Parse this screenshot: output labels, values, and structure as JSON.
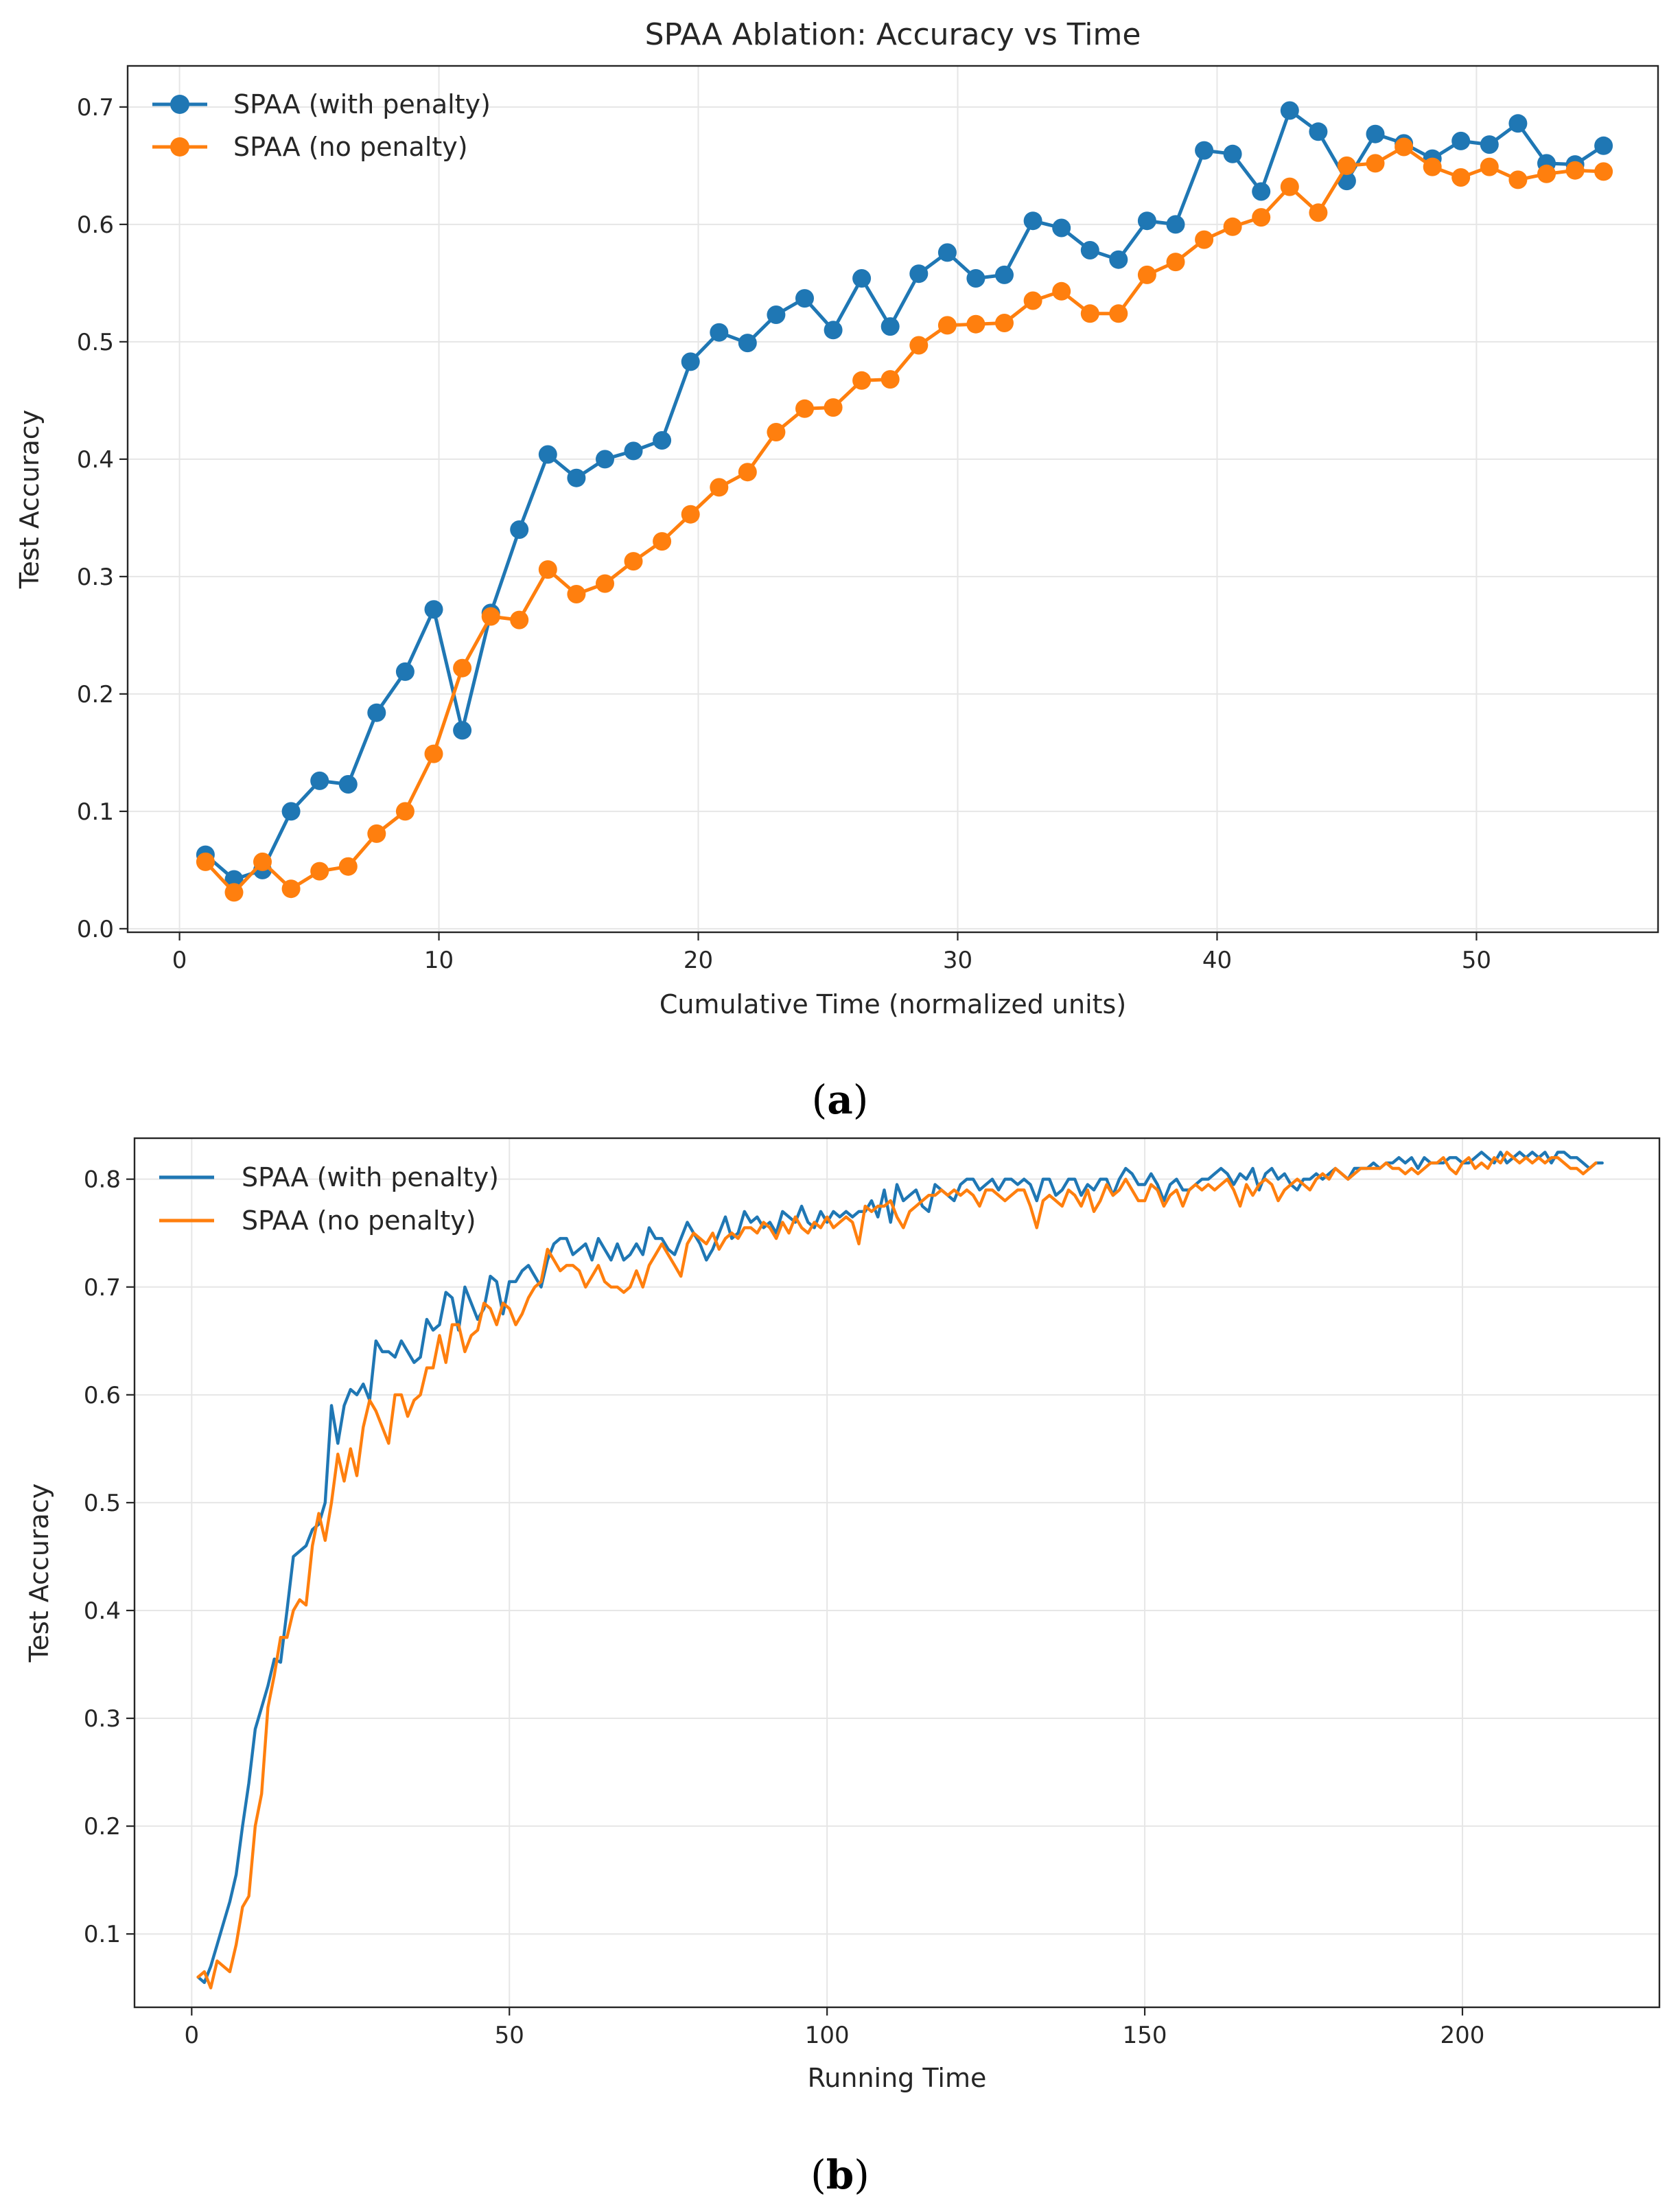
{
  "colors": {
    "with_penalty": "#1f77b4",
    "no_penalty": "#ff7f0e",
    "grid": "#e6e6e6",
    "axis": "#262626"
  },
  "chart_data": [
    {
      "panel": "(a)",
      "panel_letter": "a",
      "type": "line",
      "markers": true,
      "title": "SPAA Ablation: Accuracy vs Time",
      "xlabel": "Cumulative Time (normalized units)",
      "ylabel": "Test Accuracy",
      "xlim": [
        -2.0,
        57.0
      ],
      "ylim": [
        -0.003,
        0.735
      ],
      "xticks": [
        0,
        10,
        20,
        30,
        40,
        50
      ],
      "yticks": [
        0.0,
        0.1,
        0.2,
        0.3,
        0.4,
        0.5,
        0.6,
        0.7
      ],
      "ytick_labels": [
        "0.0",
        "0.1",
        "0.2",
        "0.3",
        "0.4",
        "0.5",
        "0.6",
        "0.7"
      ],
      "grid": true,
      "legend_position": "top-left",
      "x": [
        1.0,
        2.1,
        3.2,
        4.3,
        5.4,
        6.5,
        7.6,
        8.7,
        9.8,
        10.9,
        12.0,
        13.1,
        14.2,
        15.3,
        16.4,
        17.5,
        18.6,
        19.7,
        20.8,
        21.9,
        23.0,
        24.1,
        25.2,
        26.3,
        27.4,
        28.5,
        29.6,
        30.7,
        31.8,
        32.9,
        34.0,
        35.1,
        36.2,
        37.3,
        38.4,
        39.5,
        40.6,
        41.7,
        42.8,
        43.9,
        45.0,
        46.1,
        47.2,
        48.3,
        49.4,
        50.5,
        51.6,
        52.7,
        53.8,
        54.9
      ],
      "series": [
        {
          "name": "SPAA (with penalty)",
          "values": [
            0.063,
            0.042,
            0.05,
            0.1,
            0.126,
            0.123,
            0.184,
            0.219,
            0.272,
            0.169,
            0.269,
            0.34,
            0.404,
            0.384,
            0.4,
            0.407,
            0.416,
            0.483,
            0.508,
            0.499,
            0.523,
            0.537,
            0.51,
            0.554,
            0.513,
            0.558,
            0.576,
            0.554,
            0.557,
            0.603,
            0.597,
            0.578,
            0.57,
            0.603,
            0.6,
            0.663,
            0.66,
            0.628,
            0.697,
            0.679,
            0.637,
            0.677,
            0.669,
            0.656,
            0.671,
            0.668,
            0.686,
            0.652,
            0.651,
            0.667
          ]
        },
        {
          "name": "SPAA (no penalty)",
          "values": [
            0.057,
            0.031,
            0.057,
            0.034,
            0.049,
            0.053,
            0.081,
            0.1,
            0.149,
            0.222,
            0.266,
            0.263,
            0.306,
            0.285,
            0.294,
            0.313,
            0.33,
            0.353,
            0.376,
            0.389,
            0.423,
            0.443,
            0.444,
            0.467,
            0.468,
            0.497,
            0.514,
            0.515,
            0.516,
            0.535,
            0.543,
            0.524,
            0.524,
            0.557,
            0.568,
            0.587,
            0.598,
            0.606,
            0.632,
            0.61,
            0.65,
            0.652,
            0.666,
            0.649,
            0.64,
            0.649,
            0.638,
            0.643,
            0.646,
            0.645
          ]
        }
      ]
    },
    {
      "panel": "(b)",
      "panel_letter": "b",
      "type": "line",
      "markers": false,
      "title": "",
      "xlabel": "Running Time",
      "ylabel": "Test Accuracy",
      "xlim": [
        -9.0,
        231.0
      ],
      "ylim": [
        0.032,
        0.838
      ],
      "xticks": [
        0,
        50,
        100,
        150,
        200
      ],
      "yticks": [
        0.1,
        0.2,
        0.3,
        0.4,
        0.5,
        0.6,
        0.7,
        0.8
      ],
      "ytick_labels": [
        "0.1",
        "0.2",
        "0.3",
        "0.4",
        "0.5",
        "0.6",
        "0.7",
        "0.8"
      ],
      "grid": true,
      "legend_position": "top-left",
      "x_start": 1,
      "x_step": 1,
      "series": [
        {
          "name": "SPAA (with penalty)",
          "values": [
            0.06,
            0.055,
            0.07,
            0.09,
            0.11,
            0.13,
            0.155,
            0.2,
            0.24,
            0.29,
            0.31,
            0.33,
            0.355,
            0.352,
            0.4,
            0.45,
            0.455,
            0.46,
            0.475,
            0.48,
            0.5,
            0.59,
            0.555,
            0.59,
            0.605,
            0.6,
            0.61,
            0.595,
            0.65,
            0.64,
            0.64,
            0.635,
            0.65,
            0.64,
            0.63,
            0.635,
            0.67,
            0.66,
            0.665,
            0.695,
            0.69,
            0.66,
            0.7,
            0.685,
            0.67,
            0.68,
            0.71,
            0.705,
            0.675,
            0.705,
            0.705,
            0.715,
            0.72,
            0.71,
            0.7,
            0.725,
            0.74,
            0.745,
            0.745,
            0.73,
            0.735,
            0.74,
            0.725,
            0.745,
            0.735,
            0.725,
            0.74,
            0.725,
            0.73,
            0.74,
            0.73,
            0.755,
            0.745,
            0.745,
            0.735,
            0.73,
            0.745,
            0.76,
            0.75,
            0.74,
            0.725,
            0.735,
            0.75,
            0.765,
            0.745,
            0.75,
            0.77,
            0.76,
            0.765,
            0.755,
            0.76,
            0.75,
            0.77,
            0.765,
            0.76,
            0.775,
            0.76,
            0.755,
            0.77,
            0.76,
            0.77,
            0.765,
            0.77,
            0.765,
            0.77,
            0.77,
            0.78,
            0.765,
            0.79,
            0.76,
            0.795,
            0.78,
            0.785,
            0.79,
            0.775,
            0.77,
            0.795,
            0.79,
            0.785,
            0.78,
            0.795,
            0.8,
            0.8,
            0.79,
            0.795,
            0.8,
            0.79,
            0.8,
            0.8,
            0.795,
            0.8,
            0.795,
            0.78,
            0.8,
            0.8,
            0.785,
            0.79,
            0.8,
            0.8,
            0.785,
            0.795,
            0.79,
            0.8,
            0.8,
            0.785,
            0.8,
            0.81,
            0.805,
            0.795,
            0.795,
            0.805,
            0.795,
            0.78,
            0.795,
            0.8,
            0.79,
            0.79,
            0.795,
            0.8,
            0.8,
            0.805,
            0.81,
            0.805,
            0.795,
            0.805,
            0.8,
            0.81,
            0.79,
            0.805,
            0.81,
            0.8,
            0.805,
            0.795,
            0.79,
            0.8,
            0.8,
            0.805,
            0.8,
            0.805,
            0.81,
            0.805,
            0.8,
            0.81,
            0.81,
            0.81,
            0.815,
            0.81,
            0.815,
            0.815,
            0.82,
            0.815,
            0.82,
            0.81,
            0.82,
            0.815,
            0.815,
            0.815,
            0.82,
            0.82,
            0.815,
            0.815,
            0.82,
            0.825,
            0.82,
            0.815,
            0.825,
            0.815,
            0.82,
            0.825,
            0.82,
            0.825,
            0.82,
            0.825,
            0.815,
            0.825,
            0.825,
            0.82,
            0.82,
            0.815,
            0.81,
            0.815,
            0.815
          ]
        },
        {
          "name": "SPAA (no penalty)",
          "values": [
            0.06,
            0.065,
            0.05,
            0.075,
            0.07,
            0.065,
            0.09,
            0.125,
            0.135,
            0.2,
            0.23,
            0.31,
            0.34,
            0.375,
            0.375,
            0.4,
            0.41,
            0.405,
            0.46,
            0.49,
            0.465,
            0.5,
            0.545,
            0.52,
            0.55,
            0.525,
            0.57,
            0.595,
            0.585,
            0.57,
            0.555,
            0.6,
            0.6,
            0.58,
            0.595,
            0.6,
            0.625,
            0.625,
            0.655,
            0.63,
            0.665,
            0.665,
            0.64,
            0.655,
            0.66,
            0.685,
            0.68,
            0.665,
            0.685,
            0.68,
            0.665,
            0.675,
            0.69,
            0.7,
            0.705,
            0.735,
            0.725,
            0.715,
            0.72,
            0.72,
            0.715,
            0.7,
            0.71,
            0.72,
            0.705,
            0.7,
            0.7,
            0.695,
            0.7,
            0.715,
            0.7,
            0.72,
            0.73,
            0.74,
            0.73,
            0.72,
            0.71,
            0.74,
            0.75,
            0.745,
            0.74,
            0.75,
            0.735,
            0.745,
            0.75,
            0.745,
            0.755,
            0.755,
            0.75,
            0.76,
            0.755,
            0.745,
            0.76,
            0.75,
            0.765,
            0.755,
            0.75,
            0.76,
            0.755,
            0.765,
            0.755,
            0.76,
            0.765,
            0.76,
            0.74,
            0.775,
            0.77,
            0.775,
            0.775,
            0.78,
            0.765,
            0.755,
            0.77,
            0.775,
            0.78,
            0.785,
            0.785,
            0.79,
            0.785,
            0.79,
            0.785,
            0.79,
            0.785,
            0.775,
            0.79,
            0.79,
            0.785,
            0.78,
            0.785,
            0.79,
            0.79,
            0.775,
            0.755,
            0.78,
            0.785,
            0.78,
            0.775,
            0.79,
            0.785,
            0.775,
            0.79,
            0.77,
            0.78,
            0.795,
            0.785,
            0.79,
            0.8,
            0.79,
            0.78,
            0.78,
            0.795,
            0.79,
            0.775,
            0.785,
            0.79,
            0.775,
            0.79,
            0.795,
            0.79,
            0.795,
            0.79,
            0.795,
            0.8,
            0.79,
            0.775,
            0.795,
            0.785,
            0.795,
            0.8,
            0.795,
            0.78,
            0.79,
            0.795,
            0.8,
            0.795,
            0.79,
            0.8,
            0.805,
            0.8,
            0.81,
            0.805,
            0.8,
            0.805,
            0.81,
            0.81,
            0.81,
            0.81,
            0.815,
            0.81,
            0.81,
            0.805,
            0.81,
            0.805,
            0.81,
            0.815,
            0.815,
            0.82,
            0.81,
            0.805,
            0.815,
            0.82,
            0.81,
            0.815,
            0.81,
            0.82,
            0.815,
            0.825,
            0.82,
            0.815,
            0.82,
            0.815,
            0.82,
            0.815,
            0.82,
            0.82,
            0.815,
            0.81,
            0.81,
            0.805,
            0.81,
            0.815
          ]
        }
      ]
    }
  ]
}
